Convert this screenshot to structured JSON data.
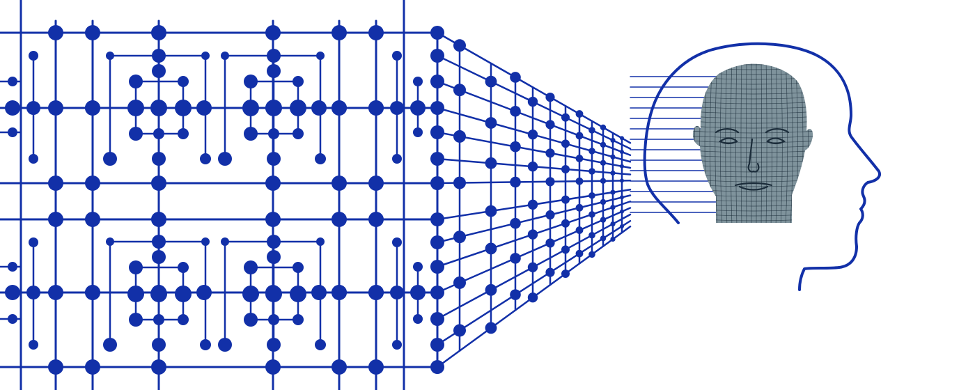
{
  "colors": {
    "circuit": "#1230a8",
    "background": "#ffffff",
    "face_fill": "#7f939c",
    "face_mesh": "#1b2c3a"
  },
  "icons": {
    "circuit": "circuit-board-icon",
    "head": "head-profile-icon",
    "face": "wireframe-face-icon"
  }
}
